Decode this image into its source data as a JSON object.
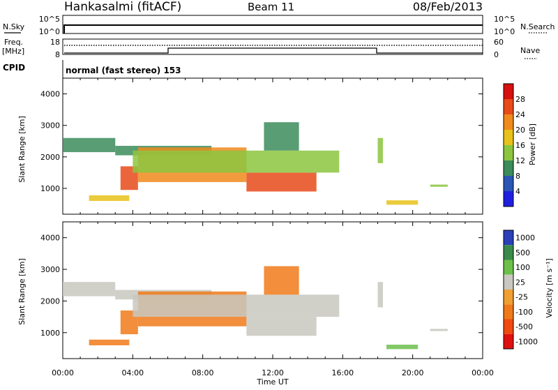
{
  "header": {
    "station": "Hankasalmi (fitACF)",
    "beam": "Beam 11",
    "date": "08/Feb/2013"
  },
  "panels": {
    "nsky_label": "N.Sky",
    "nsearch_label": "N.Search",
    "nsky_ticks": [
      "10^5",
      "10^0"
    ],
    "nsearch_ticks": [
      "10^5",
      "10^0"
    ],
    "freq_label": "Freq.",
    "freq_unit": "[MHz]",
    "freq_ticks": [
      "18",
      "8"
    ],
    "nave_label": "Nave",
    "nave_ticks": [
      "60",
      "0"
    ],
    "cpid_label": "CPID",
    "cpid_text": "normal (fast stereo) 153"
  },
  "axes": {
    "x_label": "Time UT",
    "x_ticks": [
      "00:00",
      "04:00",
      "08:00",
      "12:00",
      "16:00",
      "20:00",
      "00:00"
    ],
    "y_label": "Slant Range [km]",
    "y_ticks": [
      "1000",
      "2000",
      "3000",
      "4000"
    ]
  },
  "colorbars": {
    "power": {
      "label": "Power [dB]",
      "ticks": [
        "4",
        "8",
        "12",
        "16",
        "20",
        "24",
        "28"
      ],
      "colors": [
        "#1f1fe0",
        "#2a55b5",
        "#3b8c5a",
        "#8cc63f",
        "#e8c21a",
        "#f08a1c",
        "#e84a1a",
        "#d81010"
      ]
    },
    "velocity": {
      "label": "Velocity [m s⁻¹]",
      "ticks": [
        "1000",
        "500",
        "100",
        "25",
        "-25",
        "-100",
        "-500",
        "-1000"
      ],
      "colors": [
        "#2a3fb8",
        "#3a8a4a",
        "#6cc04a",
        "#c8c8c0",
        "#f0a030",
        "#f07a1a",
        "#f04a10",
        "#e01010"
      ]
    }
  },
  "chart_data": [
    {
      "type": "heatmap",
      "name": "power",
      "x_range": [
        0,
        24
      ],
      "ylim": [
        180,
        4500
      ],
      "features": [
        {
          "t0": 0.0,
          "t1": 3.0,
          "r0": 2150,
          "r1": 2600,
          "level": 2
        },
        {
          "t0": 3.0,
          "t1": 8.5,
          "r0": 2050,
          "r1": 2350,
          "level": 2
        },
        {
          "t0": 3.3,
          "t1": 4.3,
          "r0": 950,
          "r1": 1700,
          "level": 6
        },
        {
          "t0": 4.3,
          "t1": 10.5,
          "r0": 1200,
          "r1": 2300,
          "level": 5
        },
        {
          "t0": 10.5,
          "t1": 14.5,
          "r0": 900,
          "r1": 1500,
          "level": 6
        },
        {
          "t0": 4.0,
          "t1": 15.8,
          "r0": 1500,
          "r1": 2200,
          "level": 3
        },
        {
          "t0": 11.5,
          "t1": 13.5,
          "r0": 2200,
          "r1": 3100,
          "level": 2
        },
        {
          "t0": 1.5,
          "t1": 3.8,
          "r0": 600,
          "r1": 780,
          "level": 4
        },
        {
          "t0": 18.0,
          "t1": 18.3,
          "r0": 1800,
          "r1": 2600,
          "level": 3
        },
        {
          "t0": 18.5,
          "t1": 20.3,
          "r0": 480,
          "r1": 620,
          "level": 4
        },
        {
          "t0": 21.0,
          "t1": 22.0,
          "r0": 1050,
          "r1": 1120,
          "level": 3
        }
      ]
    },
    {
      "type": "heatmap",
      "name": "velocity",
      "x_range": [
        0,
        24
      ],
      "ylim": [
        180,
        4500
      ],
      "features": [
        {
          "t0": 0.0,
          "t1": 3.0,
          "r0": 2150,
          "r1": 2600,
          "level": 3
        },
        {
          "t0": 3.0,
          "t1": 8.5,
          "r0": 2050,
          "r1": 2350,
          "level": 3
        },
        {
          "t0": 3.3,
          "t1": 4.3,
          "r0": 950,
          "r1": 1700,
          "level": 5
        },
        {
          "t0": 4.3,
          "t1": 10.5,
          "r0": 1200,
          "r1": 2300,
          "level": 5
        },
        {
          "t0": 10.5,
          "t1": 14.5,
          "r0": 900,
          "r1": 1500,
          "level": 3
        },
        {
          "t0": 4.0,
          "t1": 15.8,
          "r0": 1500,
          "r1": 2200,
          "level": 3
        },
        {
          "t0": 11.5,
          "t1": 13.5,
          "r0": 2200,
          "r1": 3100,
          "level": 5
        },
        {
          "t0": 1.5,
          "t1": 3.8,
          "r0": 600,
          "r1": 780,
          "level": 5
        },
        {
          "t0": 18.0,
          "t1": 18.3,
          "r0": 1800,
          "r1": 2600,
          "level": 3
        },
        {
          "t0": 18.5,
          "t1": 20.3,
          "r0": 480,
          "r1": 620,
          "level": 2
        },
        {
          "t0": 21.0,
          "t1": 22.0,
          "r0": 1050,
          "r1": 1120,
          "level": 3
        }
      ]
    }
  ]
}
